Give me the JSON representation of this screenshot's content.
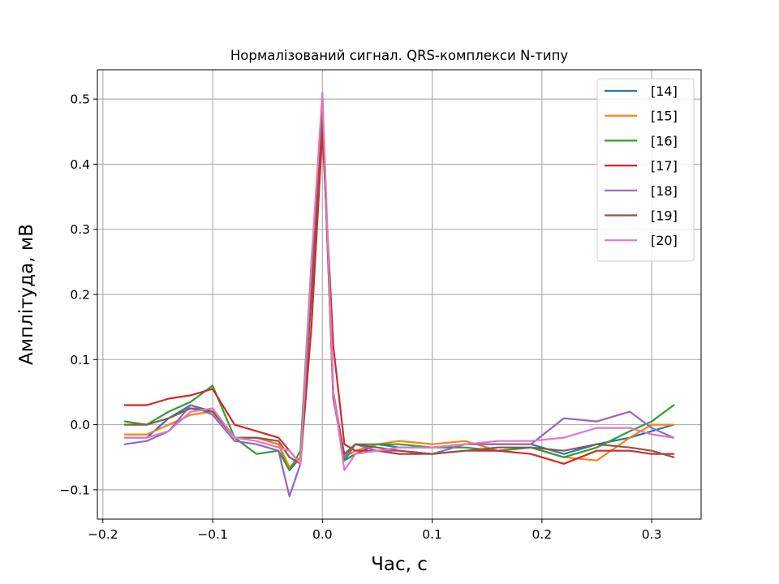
{
  "chart_data": {
    "type": "line",
    "title": "Нормалізований сигнал. QRS-комплекси N-типу",
    "xlabel": "Час, с",
    "ylabel": "Амплітуда, мВ",
    "xlim": [
      -0.205,
      0.345
    ],
    "ylim": [
      -0.145,
      0.545
    ],
    "xticks": [
      -0.2,
      -0.1,
      0.0,
      0.1,
      0.2,
      0.3
    ],
    "xtick_labels": [
      "−0.2",
      "−0.1",
      "0.0",
      "0.1",
      "0.2",
      "0.3"
    ],
    "yticks": [
      -0.1,
      0.0,
      0.1,
      0.2,
      0.3,
      0.4,
      0.5
    ],
    "ytick_labels": [
      "−0.1",
      "0.0",
      "0.1",
      "0.2",
      "0.3",
      "0.4",
      "0.5"
    ],
    "grid": true,
    "legend_position": "top-right",
    "x": [
      -0.18,
      -0.16,
      -0.14,
      -0.12,
      -0.1,
      -0.08,
      -0.06,
      -0.04,
      -0.03,
      -0.02,
      -0.01,
      0.0,
      0.01,
      0.02,
      0.03,
      0.05,
      0.07,
      0.1,
      0.13,
      0.16,
      0.19,
      0.22,
      0.25,
      0.28,
      0.3,
      0.32
    ],
    "series": [
      {
        "name": "[14]",
        "color": "#1f77b4",
        "values": [
          -0.02,
          -0.02,
          0.01,
          0.03,
          0.02,
          -0.02,
          -0.02,
          -0.03,
          -0.07,
          -0.05,
          0.2,
          0.48,
          0.05,
          -0.055,
          -0.045,
          -0.03,
          -0.035,
          -0.035,
          -0.03,
          -0.03,
          -0.03,
          -0.045,
          -0.03,
          -0.02,
          -0.01,
          0.0
        ]
      },
      {
        "name": "[15]",
        "color": "#ff7f0e",
        "values": [
          -0.015,
          -0.015,
          0.0,
          0.015,
          0.02,
          -0.02,
          -0.02,
          -0.03,
          -0.065,
          -0.05,
          0.22,
          0.49,
          0.05,
          -0.05,
          -0.04,
          -0.03,
          -0.025,
          -0.03,
          -0.025,
          -0.04,
          -0.035,
          -0.05,
          -0.055,
          -0.02,
          0.0,
          0.0
        ]
      },
      {
        "name": "[16]",
        "color": "#2ca02c",
        "values": [
          0.005,
          0.0,
          0.02,
          0.035,
          0.06,
          -0.02,
          -0.045,
          -0.04,
          -0.07,
          -0.04,
          0.25,
          0.48,
          0.04,
          -0.055,
          -0.03,
          -0.03,
          -0.03,
          -0.035,
          -0.035,
          -0.04,
          -0.035,
          -0.05,
          -0.035,
          -0.01,
          0.005,
          0.03
        ]
      },
      {
        "name": "[17]",
        "color": "#d62728",
        "values": [
          0.03,
          0.03,
          0.04,
          0.045,
          0.055,
          0.0,
          -0.01,
          -0.02,
          -0.04,
          -0.06,
          0.15,
          0.45,
          0.12,
          -0.03,
          -0.04,
          -0.04,
          -0.045,
          -0.045,
          -0.04,
          -0.04,
          -0.045,
          -0.06,
          -0.04,
          -0.04,
          -0.045,
          -0.045
        ]
      },
      {
        "name": "[18]",
        "color": "#9467bd",
        "values": [
          -0.03,
          -0.025,
          -0.01,
          0.03,
          0.015,
          -0.025,
          -0.03,
          -0.04,
          -0.11,
          -0.06,
          0.22,
          0.49,
          0.05,
          -0.05,
          -0.03,
          -0.04,
          -0.04,
          -0.045,
          -0.03,
          -0.03,
          -0.03,
          0.01,
          0.005,
          0.02,
          -0.005,
          -0.02
        ]
      },
      {
        "name": "[19]",
        "color": "#8c564b",
        "values": [
          0.0,
          0.0,
          0.01,
          0.025,
          0.02,
          -0.02,
          -0.02,
          -0.025,
          -0.05,
          -0.06,
          0.2,
          0.49,
          0.04,
          -0.045,
          -0.03,
          -0.035,
          -0.04,
          -0.045,
          -0.04,
          -0.035,
          -0.035,
          -0.04,
          -0.03,
          -0.035,
          -0.04,
          -0.05
        ]
      },
      {
        "name": "[20]",
        "color": "#e377c2",
        "values": [
          -0.02,
          -0.02,
          -0.01,
          0.02,
          0.025,
          -0.02,
          -0.025,
          -0.035,
          -0.04,
          -0.06,
          0.25,
          0.51,
          0.05,
          -0.07,
          -0.045,
          -0.04,
          -0.035,
          -0.035,
          -0.03,
          -0.025,
          -0.025,
          -0.02,
          -0.005,
          -0.005,
          -0.015,
          -0.02
        ]
      }
    ]
  }
}
